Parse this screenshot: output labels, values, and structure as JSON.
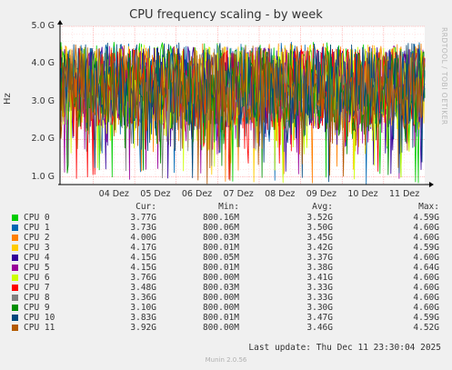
{
  "chart_data": {
    "type": "line",
    "title": "CPU frequency scaling - by week",
    "ylabel": "Hz",
    "side_text": "RRDTOOL / TOBI OETIKER",
    "ylim": [
      800000000,
      5000000000
    ],
    "y_ticks": [
      {
        "value": 1000000000,
        "label": "1.0 G"
      },
      {
        "value": 2000000000,
        "label": "2.0 G"
      },
      {
        "value": 3000000000,
        "label": "3.0 G"
      },
      {
        "value": 4000000000,
        "label": "4.0 G"
      },
      {
        "value": 5000000000,
        "label": "5.0 G"
      }
    ],
    "x_ticks": [
      "04 Dez",
      "05 Dez",
      "06 Dez",
      "07 Dez",
      "08 Dez",
      "09 Dez",
      "10 Dez",
      "11 Dez"
    ],
    "x_range_days": [
      3.2,
      11.99
    ],
    "grid": true,
    "legend_columns": [
      "Cur:",
      "Min:",
      "Avg:",
      "Max:"
    ],
    "series": [
      {
        "name": "CPU 0",
        "color": "#00cc00",
        "cur": "3.77G",
        "min": "800.16M",
        "avg": "3.52G",
        "max": "4.59G"
      },
      {
        "name": "CPU 1",
        "color": "#0066b3",
        "cur": "3.73G",
        "min": "800.06M",
        "avg": "3.50G",
        "max": "4.60G"
      },
      {
        "name": "CPU 2",
        "color": "#ff8000",
        "cur": "4.00G",
        "min": "800.03M",
        "avg": "3.45G",
        "max": "4.60G"
      },
      {
        "name": "CPU 3",
        "color": "#ffcc00",
        "cur": "4.17G",
        "min": "800.01M",
        "avg": "3.42G",
        "max": "4.59G"
      },
      {
        "name": "CPU 4",
        "color": "#330099",
        "cur": "4.15G",
        "min": "800.05M",
        "avg": "3.37G",
        "max": "4.60G"
      },
      {
        "name": "CPU 5",
        "color": "#990099",
        "cur": "4.15G",
        "min": "800.01M",
        "avg": "3.38G",
        "max": "4.64G"
      },
      {
        "name": "CPU 6",
        "color": "#ccff00",
        "cur": "3.76G",
        "min": "800.00M",
        "avg": "3.41G",
        "max": "4.60G"
      },
      {
        "name": "CPU 7",
        "color": "#ff0000",
        "cur": "3.48G",
        "min": "800.03M",
        "avg": "3.33G",
        "max": "4.60G"
      },
      {
        "name": "CPU 8",
        "color": "#808080",
        "cur": "3.36G",
        "min": "800.00M",
        "avg": "3.33G",
        "max": "4.60G"
      },
      {
        "name": "CPU 9",
        "color": "#008f00",
        "cur": "3.10G",
        "min": "800.00M",
        "avg": "3.30G",
        "max": "4.60G"
      },
      {
        "name": "CPU 10",
        "color": "#00487d",
        "cur": "3.83G",
        "min": "800.01M",
        "avg": "3.47G",
        "max": "4.59G"
      },
      {
        "name": "CPU 11",
        "color": "#b35a00",
        "cur": "3.92G",
        "min": "800.00M",
        "avg": "3.46G",
        "max": "4.52G"
      }
    ]
  },
  "footer": {
    "last_update": "Last update: Thu Dec 11 23:30:04 2025",
    "munin": "Munin 2.0.56"
  }
}
